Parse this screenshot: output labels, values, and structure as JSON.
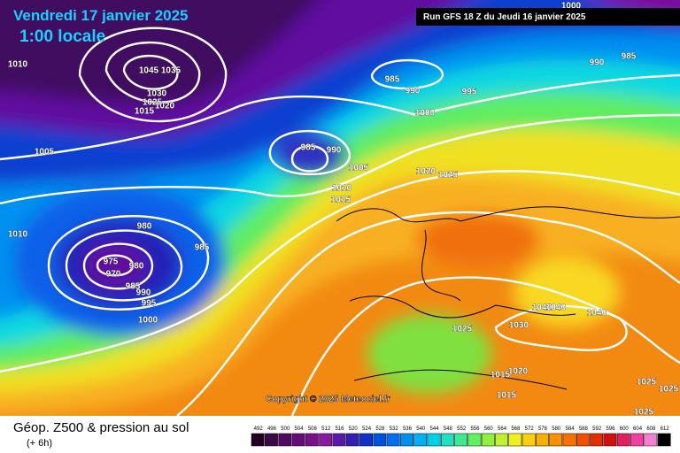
{
  "header": {
    "date": "Vendredi 17 janvier 2025",
    "time": "1:00 locale",
    "run": "Run GFS 18 Z du Jeudi 16 janvier 2025"
  },
  "copyright": "Copyright © 2025 Meteociel.fr",
  "isobar_labels": [
    1045,
    1035,
    1030,
    1025,
    1020,
    1015,
    1010,
    1005,
    985,
    990,
    985,
    990,
    995,
    1000,
    990,
    985,
    1000,
    1005,
    1010,
    1015,
    1020,
    1025,
    1010,
    980,
    975,
    980,
    970,
    985,
    990,
    995,
    1000,
    985,
    1040,
    1040,
    1040,
    1025,
    1030,
    1020,
    1015,
    1015,
    1025,
    1025,
    1025
  ],
  "legend": {
    "title": "Géop. Z500 & pression au sol",
    "subtitle": "(+ 6h)",
    "scale": [
      492,
      496,
      500,
      504,
      508,
      512,
      516,
      520,
      524,
      528,
      532,
      536,
      540,
      544,
      548,
      552,
      556,
      560,
      564,
      568,
      572,
      576,
      580,
      584,
      588,
      592,
      596,
      600,
      604,
      608,
      612
    ],
    "colors": [
      "#200020",
      "#3a0a44",
      "#500a60",
      "#660c78",
      "#7a0f8c",
      "#8a1aa0",
      "#5a1aa8",
      "#3020b0",
      "#1030c8",
      "#0050e0",
      "#0070f0",
      "#0090f0",
      "#00b0f0",
      "#00d0e8",
      "#20e0c0",
      "#40e890",
      "#60f060",
      "#90f040",
      "#c0f030",
      "#f0f020",
      "#f8d010",
      "#f8b000",
      "#f89000",
      "#f87000",
      "#f05000",
      "#e03000",
      "#d01010",
      "#e02060",
      "#f040a0",
      "#f080d0",
      "#000000"
    ]
  }
}
